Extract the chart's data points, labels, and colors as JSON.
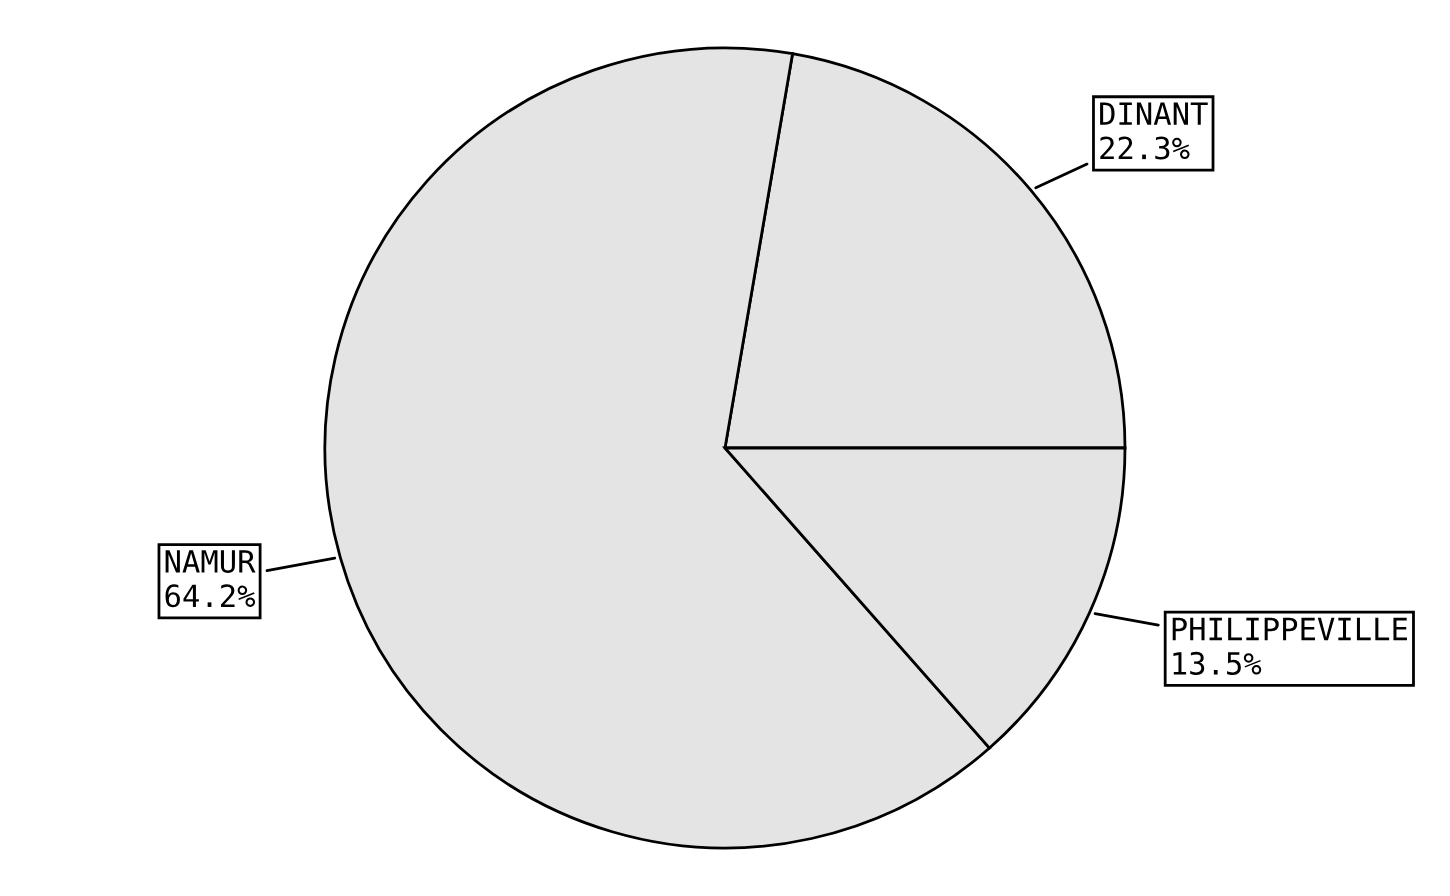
{
  "chart_data": {
    "type": "pie",
    "categories": [
      "DINANT",
      "NAMUR",
      "PHILIPPEVILLE"
    ],
    "values": [
      22.3,
      64.2,
      13.5
    ],
    "value_labels": [
      "22.3%",
      "64.2%",
      "13.5%"
    ],
    "colors": [
      "#e4e4e4",
      "#e4e4e4",
      "#e4e4e4"
    ]
  }
}
